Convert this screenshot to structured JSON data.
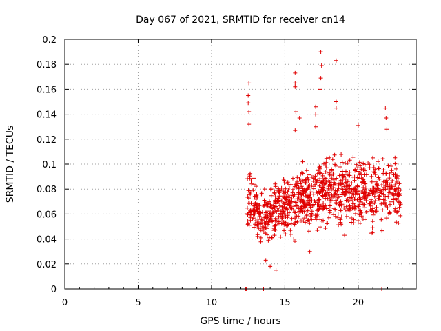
{
  "chart_data": {
    "type": "scatter",
    "title": "Day 067 of 2021, SRMTID for receiver cn14",
    "xlabel": "GPS time / hours",
    "ylabel": "SRMTID / TECUs",
    "xlim": [
      0,
      23.95
    ],
    "ylim": [
      0,
      0.2
    ],
    "grid": true,
    "x_ticks": [
      0,
      5,
      10,
      15,
      20
    ],
    "y_ticks": [
      0,
      0.02,
      0.04,
      0.06,
      0.08,
      0.1,
      0.12,
      0.14,
      0.16,
      0.18,
      0.2
    ],
    "x_tick_labels": [
      "0",
      "5",
      "10",
      "15",
      "20"
    ],
    "y_tick_labels": [
      "0",
      "0.02",
      "0.04",
      "0.06",
      "0.08",
      "0.1",
      "0.12",
      "0.14",
      "0.16",
      "0.18",
      "0.2"
    ],
    "marker": "plus",
    "color": "#e00000",
    "notable_points": [
      {
        "x": 12.55,
        "y": 0.165
      },
      {
        "x": 12.5,
        "y": 0.155
      },
      {
        "x": 12.5,
        "y": 0.149
      },
      {
        "x": 12.55,
        "y": 0.142
      },
      {
        "x": 12.55,
        "y": 0.132
      },
      {
        "x": 13.7,
        "y": 0.023
      },
      {
        "x": 14.0,
        "y": 0.018
      },
      {
        "x": 14.4,
        "y": 0.015
      },
      {
        "x": 15.7,
        "y": 0.173
      },
      {
        "x": 15.7,
        "y": 0.165
      },
      {
        "x": 15.7,
        "y": 0.162
      },
      {
        "x": 15.75,
        "y": 0.142
      },
      {
        "x": 15.7,
        "y": 0.127
      },
      {
        "x": 16.0,
        "y": 0.137
      },
      {
        "x": 17.45,
        "y": 0.19
      },
      {
        "x": 17.5,
        "y": 0.179
      },
      {
        "x": 17.45,
        "y": 0.169
      },
      {
        "x": 17.4,
        "y": 0.16
      },
      {
        "x": 17.1,
        "y": 0.146
      },
      {
        "x": 17.1,
        "y": 0.14
      },
      {
        "x": 17.1,
        "y": 0.13
      },
      {
        "x": 18.5,
        "y": 0.183
      },
      {
        "x": 18.5,
        "y": 0.15
      },
      {
        "x": 18.5,
        "y": 0.145
      },
      {
        "x": 20.0,
        "y": 0.131
      },
      {
        "x": 21.85,
        "y": 0.145
      },
      {
        "x": 21.9,
        "y": 0.137
      },
      {
        "x": 21.95,
        "y": 0.128
      },
      {
        "x": 16.7,
        "y": 0.03
      }
    ],
    "dense_clusters": [
      {
        "x_range": [
          12.4,
          13.1
        ],
        "y_range": [
          0.04,
          0.1
        ],
        "count": 70
      },
      {
        "x_range": [
          13.1,
          14.3
        ],
        "y_range": [
          0.025,
          0.09
        ],
        "count": 110
      },
      {
        "x_range": [
          14.3,
          15.8
        ],
        "y_range": [
          0.035,
          0.1
        ],
        "count": 160
      },
      {
        "x_range": [
          15.8,
          17.5
        ],
        "y_range": [
          0.04,
          0.11
        ],
        "count": 190
      },
      {
        "x_range": [
          17.5,
          19.3
        ],
        "y_range": [
          0.035,
          0.12
        ],
        "count": 180
      },
      {
        "x_range": [
          19.3,
          21.0
        ],
        "y_range": [
          0.04,
          0.115
        ],
        "count": 170
      },
      {
        "x_range": [
          21.0,
          22.9
        ],
        "y_range": [
          0.045,
          0.11
        ],
        "count": 160
      }
    ],
    "zero_markers_x": [
      12.3,
      12.35,
      12.4,
      13.55,
      21.6
    ]
  }
}
